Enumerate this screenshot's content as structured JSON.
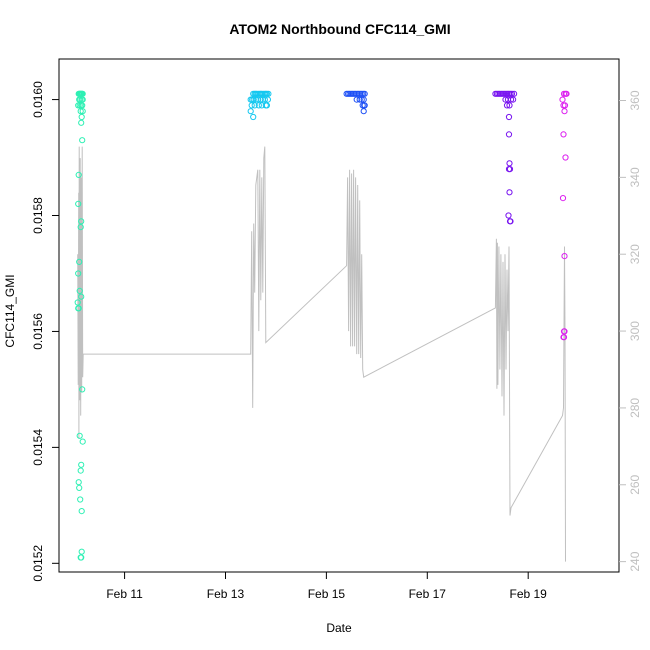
{
  "chart_data": {
    "type": "scatter",
    "title": "ATOM2 Northbound CFC114_GMI",
    "xlabel": "Date",
    "ylabel": "CFC114_GMI",
    "x_ticks": [
      "Feb 11",
      "Feb 13",
      "Feb 15",
      "Feb 17",
      "Feb 19"
    ],
    "x_tick_days": [
      11,
      13,
      15,
      17,
      19
    ],
    "xlim_days": [
      9.7,
      20.8
    ],
    "y_ticks": [
      "0.0152",
      "0.0154",
      "0.0156",
      "0.0158",
      "0.0160"
    ],
    "ylim": [
      0.015185,
      0.01607
    ],
    "y2_ticks": [
      "240",
      "260",
      "280",
      "300",
      "320",
      "340",
      "360"
    ],
    "y2lim": [
      237.3,
      370.8
    ],
    "colors": {
      "axis": "#000000",
      "secondary_line": "#c0c0c0",
      "secondary_axis": "#bfbfbf",
      "flight_1": "#2ef0b4",
      "flight_2": "#14c8f0",
      "flight_3": "#1e50f5",
      "flight_4": "#7814f0",
      "flight_5": "#dc1ef0"
    },
    "series": [
      {
        "color_key": "flight_1",
        "points": [
          [
            10.09,
            0.01601
          ],
          [
            10.1,
            0.01601
          ],
          [
            10.11,
            0.01601
          ],
          [
            10.12,
            0.01601
          ],
          [
            10.13,
            0.01601
          ],
          [
            10.14,
            0.01601
          ],
          [
            10.15,
            0.01601
          ],
          [
            10.16,
            0.01601
          ],
          [
            10.17,
            0.01601
          ],
          [
            10.1,
            0.016
          ],
          [
            10.12,
            0.016
          ],
          [
            10.15,
            0.016
          ],
          [
            10.17,
            0.016
          ],
          [
            10.08,
            0.01599
          ],
          [
            10.11,
            0.01599
          ],
          [
            10.14,
            0.01599
          ],
          [
            10.16,
            0.01599
          ],
          [
            10.13,
            0.01598
          ],
          [
            10.17,
            0.01598
          ],
          [
            10.15,
            0.01597
          ],
          [
            10.14,
            0.01596
          ],
          [
            10.16,
            0.01593
          ],
          [
            10.09,
            0.01587
          ],
          [
            10.08,
            0.01582
          ],
          [
            10.14,
            0.01579
          ],
          [
            10.13,
            0.01578
          ],
          [
            10.1,
            0.01572
          ],
          [
            10.08,
            0.0157
          ],
          [
            10.11,
            0.01567
          ],
          [
            10.14,
            0.01566
          ],
          [
            10.07,
            0.01565
          ],
          [
            10.09,
            0.01564
          ],
          [
            10.08,
            0.01564
          ],
          [
            10.16,
            0.0155
          ],
          [
            10.11,
            0.01542
          ],
          [
            10.17,
            0.01541
          ],
          [
            10.14,
            0.01537
          ],
          [
            10.13,
            0.01536
          ],
          [
            10.09,
            0.01534
          ],
          [
            10.1,
            0.01533
          ],
          [
            10.12,
            0.01531
          ],
          [
            10.15,
            0.01529
          ],
          [
            10.15,
            0.01522
          ],
          [
            10.14,
            0.01521
          ],
          [
            10.13,
            0.01521
          ]
        ]
      },
      {
        "color_key": "flight_2",
        "points": [
          [
            13.5,
            0.016
          ],
          [
            13.53,
            0.016
          ],
          [
            13.55,
            0.01601
          ],
          [
            13.58,
            0.01601
          ],
          [
            13.6,
            0.01601
          ],
          [
            13.62,
            0.01601
          ],
          [
            13.65,
            0.01601
          ],
          [
            13.68,
            0.01601
          ],
          [
            13.7,
            0.01601
          ],
          [
            13.72,
            0.01601
          ],
          [
            13.75,
            0.01601
          ],
          [
            13.78,
            0.01601
          ],
          [
            13.8,
            0.01601
          ],
          [
            13.82,
            0.01601
          ],
          [
            13.85,
            0.01601
          ],
          [
            13.52,
            0.01599
          ],
          [
            13.56,
            0.016
          ],
          [
            13.6,
            0.016
          ],
          [
            13.64,
            0.016
          ],
          [
            13.7,
            0.016
          ],
          [
            13.74,
            0.016
          ],
          [
            13.78,
            0.016
          ],
          [
            13.84,
            0.016
          ],
          [
            13.58,
            0.01599
          ],
          [
            13.66,
            0.01599
          ],
          [
            13.72,
            0.01599
          ],
          [
            13.8,
            0.01599
          ],
          [
            13.82,
            0.01599
          ],
          [
            13.5,
            0.01598
          ],
          [
            13.55,
            0.01597
          ]
        ]
      },
      {
        "color_key": "flight_3",
        "points": [
          [
            15.4,
            0.01601
          ],
          [
            15.43,
            0.01601
          ],
          [
            15.46,
            0.01601
          ],
          [
            15.49,
            0.01601
          ],
          [
            15.52,
            0.01601
          ],
          [
            15.55,
            0.01601
          ],
          [
            15.58,
            0.01601
          ],
          [
            15.61,
            0.01601
          ],
          [
            15.64,
            0.01601
          ],
          [
            15.67,
            0.01601
          ],
          [
            15.7,
            0.01601
          ],
          [
            15.73,
            0.01601
          ],
          [
            15.76,
            0.01601
          ],
          [
            15.6,
            0.016
          ],
          [
            15.66,
            0.016
          ],
          [
            15.7,
            0.016
          ],
          [
            15.74,
            0.016
          ],
          [
            15.76,
            0.01599
          ],
          [
            15.72,
            0.01599
          ],
          [
            15.75,
            0.01599
          ],
          [
            15.74,
            0.01598
          ]
        ]
      },
      {
        "color_key": "flight_4",
        "points": [
          [
            18.35,
            0.01601
          ],
          [
            18.38,
            0.01601
          ],
          [
            18.41,
            0.01601
          ],
          [
            18.44,
            0.01601
          ],
          [
            18.47,
            0.01601
          ],
          [
            18.5,
            0.01601
          ],
          [
            18.53,
            0.01601
          ],
          [
            18.56,
            0.01601
          ],
          [
            18.59,
            0.01601
          ],
          [
            18.62,
            0.01601
          ],
          [
            18.65,
            0.01601
          ],
          [
            18.68,
            0.01601
          ],
          [
            18.72,
            0.01601
          ],
          [
            18.55,
            0.016
          ],
          [
            18.6,
            0.016
          ],
          [
            18.66,
            0.016
          ],
          [
            18.7,
            0.016
          ],
          [
            18.58,
            0.01599
          ],
          [
            18.63,
            0.01599
          ],
          [
            18.62,
            0.01597
          ],
          [
            18.62,
            0.01594
          ],
          [
            18.63,
            0.01589
          ],
          [
            18.64,
            0.01588
          ],
          [
            18.62,
            0.01588
          ],
          [
            18.63,
            0.01584
          ],
          [
            18.61,
            0.0158
          ],
          [
            18.64,
            0.01579
          ],
          [
            18.65,
            0.01579
          ]
        ]
      },
      {
        "color_key": "flight_5",
        "points": [
          [
            19.68,
            0.016
          ],
          [
            19.71,
            0.01601
          ],
          [
            19.74,
            0.01601
          ],
          [
            19.76,
            0.01601
          ],
          [
            19.7,
            0.01599
          ],
          [
            19.73,
            0.01599
          ],
          [
            19.72,
            0.01598
          ],
          [
            19.7,
            0.01594
          ],
          [
            19.74,
            0.0159
          ],
          [
            19.69,
            0.01583
          ],
          [
            19.72,
            0.01573
          ],
          [
            19.71,
            0.0156
          ],
          [
            19.72,
            0.0156
          ],
          [
            19.7,
            0.01559
          ],
          [
            19.71,
            0.01559
          ]
        ]
      }
    ],
    "secondary_line": [
      [
        10.07,
        320
      ],
      [
        10.08,
        286
      ],
      [
        10.09,
        336
      ],
      [
        10.095,
        272
      ],
      [
        10.1,
        348
      ],
      [
        10.11,
        282
      ],
      [
        10.12,
        345
      ],
      [
        10.13,
        278
      ],
      [
        10.14,
        340
      ],
      [
        10.15,
        284
      ],
      [
        10.16,
        348
      ],
      [
        10.17,
        288
      ],
      [
        10.18,
        294
      ],
      [
        13.5,
        294
      ],
      [
        13.52,
        326
      ],
      [
        13.54,
        280
      ],
      [
        13.56,
        328
      ],
      [
        13.58,
        310
      ],
      [
        13.6,
        338
      ],
      [
        13.62,
        340
      ],
      [
        13.64,
        342
      ],
      [
        13.66,
        300
      ],
      [
        13.68,
        342
      ],
      [
        13.7,
        308
      ],
      [
        13.72,
        340
      ],
      [
        13.74,
        310
      ],
      [
        13.76,
        345
      ],
      [
        13.78,
        348
      ],
      [
        13.8,
        297
      ],
      [
        15.4,
        317
      ],
      [
        15.42,
        340
      ],
      [
        15.44,
        300
      ],
      [
        15.46,
        342
      ],
      [
        15.48,
        296
      ],
      [
        15.5,
        341
      ],
      [
        15.52,
        296
      ],
      [
        15.54,
        342
      ],
      [
        15.56,
        296
      ],
      [
        15.58,
        340
      ],
      [
        15.6,
        294
      ],
      [
        15.62,
        338
      ],
      [
        15.64,
        294
      ],
      [
        15.66,
        334
      ],
      [
        15.68,
        293
      ],
      [
        15.7,
        320
      ],
      [
        15.72,
        290
      ],
      [
        15.74,
        288
      ],
      [
        18.35,
        306
      ],
      [
        18.37,
        324
      ],
      [
        18.38,
        285
      ],
      [
        18.39,
        323
      ],
      [
        18.4,
        286
      ],
      [
        18.42,
        322
      ],
      [
        18.44,
        290
      ],
      [
        18.46,
        320
      ],
      [
        18.48,
        283
      ],
      [
        18.5,
        318
      ],
      [
        18.52,
        278
      ],
      [
        18.54,
        320
      ],
      [
        18.56,
        290
      ],
      [
        18.58,
        316
      ],
      [
        18.6,
        300
      ],
      [
        18.62,
        322
      ],
      [
        18.64,
        252
      ],
      [
        18.66,
        254
      ],
      [
        19.68,
        278
      ],
      [
        19.7,
        280
      ],
      [
        19.72,
        322
      ],
      [
        19.73,
        300
      ],
      [
        19.74,
        240
      ]
    ]
  }
}
